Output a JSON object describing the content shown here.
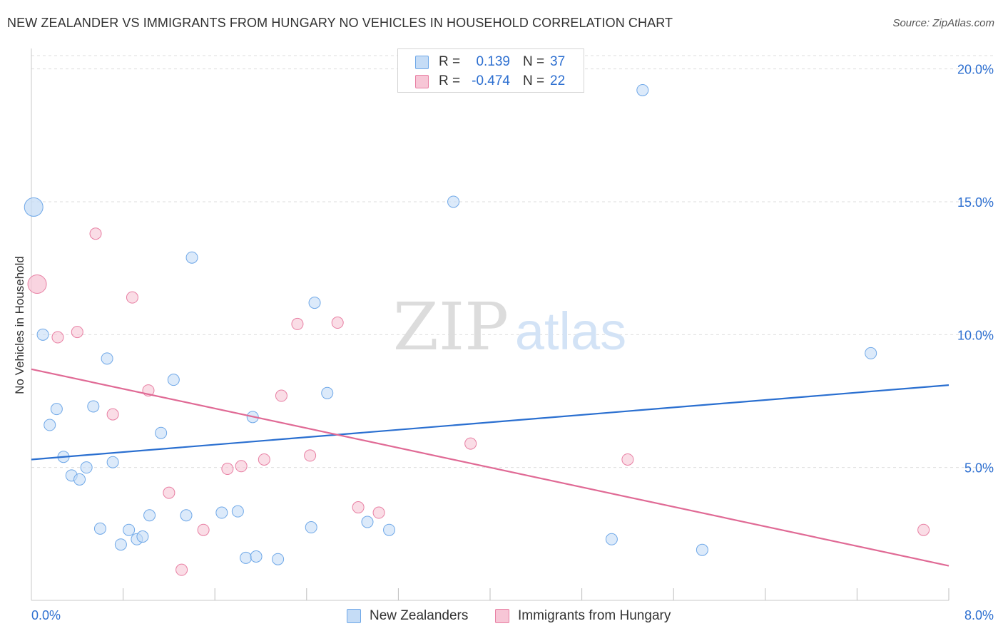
{
  "title": "NEW ZEALANDER VS IMMIGRANTS FROM HUNGARY NO VEHICLES IN HOUSEHOLD CORRELATION CHART",
  "source": "Source: ZipAtlas.com",
  "watermark": {
    "zip": "ZIP",
    "atlas": "atlas"
  },
  "legend": {
    "r_label": "R =",
    "n_label": "N =",
    "series": [
      {
        "r": "0.139",
        "n": "37"
      },
      {
        "r": "-0.474",
        "n": "22"
      }
    ]
  },
  "chart_data": {
    "type": "scatter",
    "title": "NEW ZEALANDER VS IMMIGRANTS FROM HUNGARY NO VEHICLES IN HOUSEHOLD CORRELATION CHART",
    "xlabel": "",
    "ylabel": "No Vehicles in Household",
    "xlim": [
      0,
      8
    ],
    "ylim": [
      0,
      20.5
    ],
    "x_tick_labels": {
      "min": "0.0%",
      "max": "8.0%"
    },
    "y_ticks": [
      5,
      10,
      15,
      20
    ],
    "y_tick_labels": [
      "5.0%",
      "10.0%",
      "15.0%",
      "20.0%"
    ],
    "x_minor_ticks": [
      0.8,
      1.6,
      2.4,
      3.2,
      4.0,
      4.8,
      5.6,
      6.4,
      7.2,
      8.0
    ],
    "grid": true,
    "legend_position": "top-center",
    "series": [
      {
        "name": "New Zealanders",
        "color": "#6fa8e8",
        "fill": "#c5dcf6",
        "r": 0.139,
        "n": 37,
        "trend": {
          "x": [
            0,
            8
          ],
          "y": [
            5.3,
            8.1
          ]
        },
        "points": [
          {
            "x": 0.02,
            "y": 14.8,
            "big": true
          },
          {
            "x": 0.1,
            "y": 10.0
          },
          {
            "x": 0.16,
            "y": 6.6
          },
          {
            "x": 0.22,
            "y": 7.2
          },
          {
            "x": 0.28,
            "y": 5.4
          },
          {
            "x": 0.35,
            "y": 4.7
          },
          {
            "x": 0.42,
            "y": 4.55
          },
          {
            "x": 0.48,
            "y": 5.0
          },
          {
            "x": 0.54,
            "y": 7.3
          },
          {
            "x": 0.6,
            "y": 2.7
          },
          {
            "x": 0.66,
            "y": 9.1
          },
          {
            "x": 0.71,
            "y": 5.2
          },
          {
            "x": 0.78,
            "y": 2.1
          },
          {
            "x": 0.85,
            "y": 2.65
          },
          {
            "x": 0.92,
            "y": 2.3
          },
          {
            "x": 0.97,
            "y": 2.4
          },
          {
            "x": 1.03,
            "y": 3.2
          },
          {
            "x": 1.13,
            "y": 6.3
          },
          {
            "x": 1.24,
            "y": 8.3
          },
          {
            "x": 1.35,
            "y": 3.2
          },
          {
            "x": 1.4,
            "y": 12.9
          },
          {
            "x": 1.66,
            "y": 3.3
          },
          {
            "x": 1.8,
            "y": 3.35
          },
          {
            "x": 1.87,
            "y": 1.6
          },
          {
            "x": 1.93,
            "y": 6.9
          },
          {
            "x": 1.96,
            "y": 1.65
          },
          {
            "x": 2.15,
            "y": 1.55
          },
          {
            "x": 2.44,
            "y": 2.75
          },
          {
            "x": 2.47,
            "y": 11.2
          },
          {
            "x": 2.58,
            "y": 7.8
          },
          {
            "x": 2.93,
            "y": 2.95
          },
          {
            "x": 3.12,
            "y": 2.65
          },
          {
            "x": 3.68,
            "y": 15.0
          },
          {
            "x": 5.06,
            "y": 2.3
          },
          {
            "x": 5.33,
            "y": 19.2
          },
          {
            "x": 5.85,
            "y": 1.9
          },
          {
            "x": 7.32,
            "y": 9.3
          }
        ]
      },
      {
        "name": "Immigrants from Hungary",
        "color": "#e87fa3",
        "fill": "#f7c6d6",
        "r": -0.474,
        "n": 22,
        "trend": {
          "x": [
            0,
            8
          ],
          "y": [
            8.7,
            1.3
          ]
        },
        "points": [
          {
            "x": 0.05,
            "y": 11.9,
            "big": true
          },
          {
            "x": 0.23,
            "y": 9.9
          },
          {
            "x": 0.4,
            "y": 10.1
          },
          {
            "x": 0.56,
            "y": 13.8
          },
          {
            "x": 0.71,
            "y": 7.0
          },
          {
            "x": 0.88,
            "y": 11.4
          },
          {
            "x": 1.02,
            "y": 7.9
          },
          {
            "x": 1.2,
            "y": 4.05
          },
          {
            "x": 1.31,
            "y": 1.15
          },
          {
            "x": 1.5,
            "y": 2.65
          },
          {
            "x": 1.71,
            "y": 4.95
          },
          {
            "x": 1.83,
            "y": 5.05
          },
          {
            "x": 2.03,
            "y": 5.3
          },
          {
            "x": 2.18,
            "y": 7.7
          },
          {
            "x": 2.32,
            "y": 10.4
          },
          {
            "x": 2.43,
            "y": 5.45
          },
          {
            "x": 2.67,
            "y": 10.45
          },
          {
            "x": 2.85,
            "y": 3.5
          },
          {
            "x": 3.03,
            "y": 3.3
          },
          {
            "x": 3.83,
            "y": 5.9
          },
          {
            "x": 5.2,
            "y": 5.3
          },
          {
            "x": 7.78,
            "y": 2.65
          }
        ]
      }
    ]
  }
}
